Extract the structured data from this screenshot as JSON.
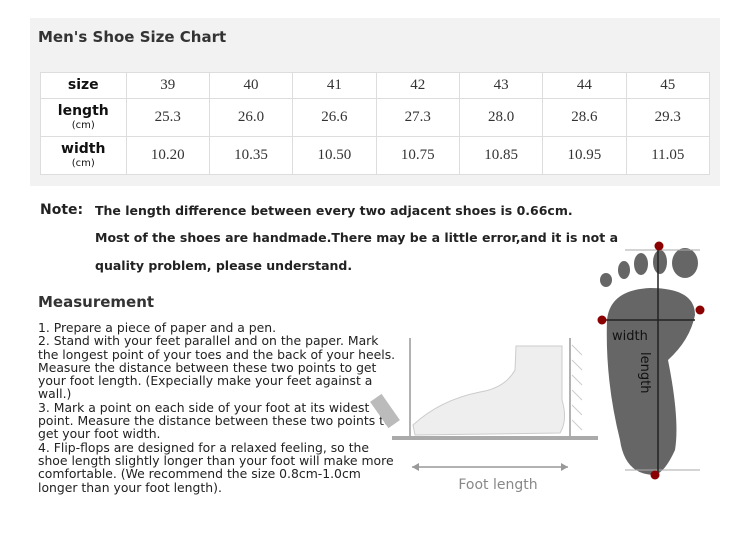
{
  "title": "Men's Shoe Size Chart",
  "table": {
    "rows": [
      {
        "label": "size",
        "unit": "",
        "values": [
          "39",
          "40",
          "41",
          "42",
          "43",
          "44",
          "45"
        ]
      },
      {
        "label": "length",
        "unit": "(cm)",
        "values": [
          "25.3",
          "26.0",
          "26.6",
          "27.3",
          "28.0",
          "28.6",
          "29.3"
        ]
      },
      {
        "label": "width",
        "unit": "(cm)",
        "values": [
          "10.20",
          "10.35",
          "10.50",
          "10.75",
          "10.85",
          "10.95",
          "11.05"
        ]
      }
    ]
  },
  "note": {
    "label": "Note:",
    "lines": [
      "The length difference between every two adjacent shoes is 0.66cm.",
      "Most of the shoes are handmade.There may be a little error,and it is not a",
      "quality problem, please understand."
    ]
  },
  "measurement": {
    "heading": "Measurement",
    "text": "1. Prepare a piece of paper and a pen.\n2. Stand with your feet parallel and on the paper. Mark the longest point of your toes and the back of your heels. Measure the distance between these two points to get your foot length. (Expecially make your feet against a wall.)\n 3. Mark a point on each side of your foot at its widest point. Measure the distance between these two points to get your foot width.\n 4. Flip-flops are designed for a relaxed feeling, so the shoe length slightly longer than your foot will make more comfortable. (We recommend the size 0.8cm-1.0cm longer than your foot length)."
  },
  "diagram": {
    "foot_length_label": "Foot length",
    "width_label": "width",
    "length_label": "length",
    "marker_color": "#8b0000",
    "foot_color": "#666666"
  }
}
